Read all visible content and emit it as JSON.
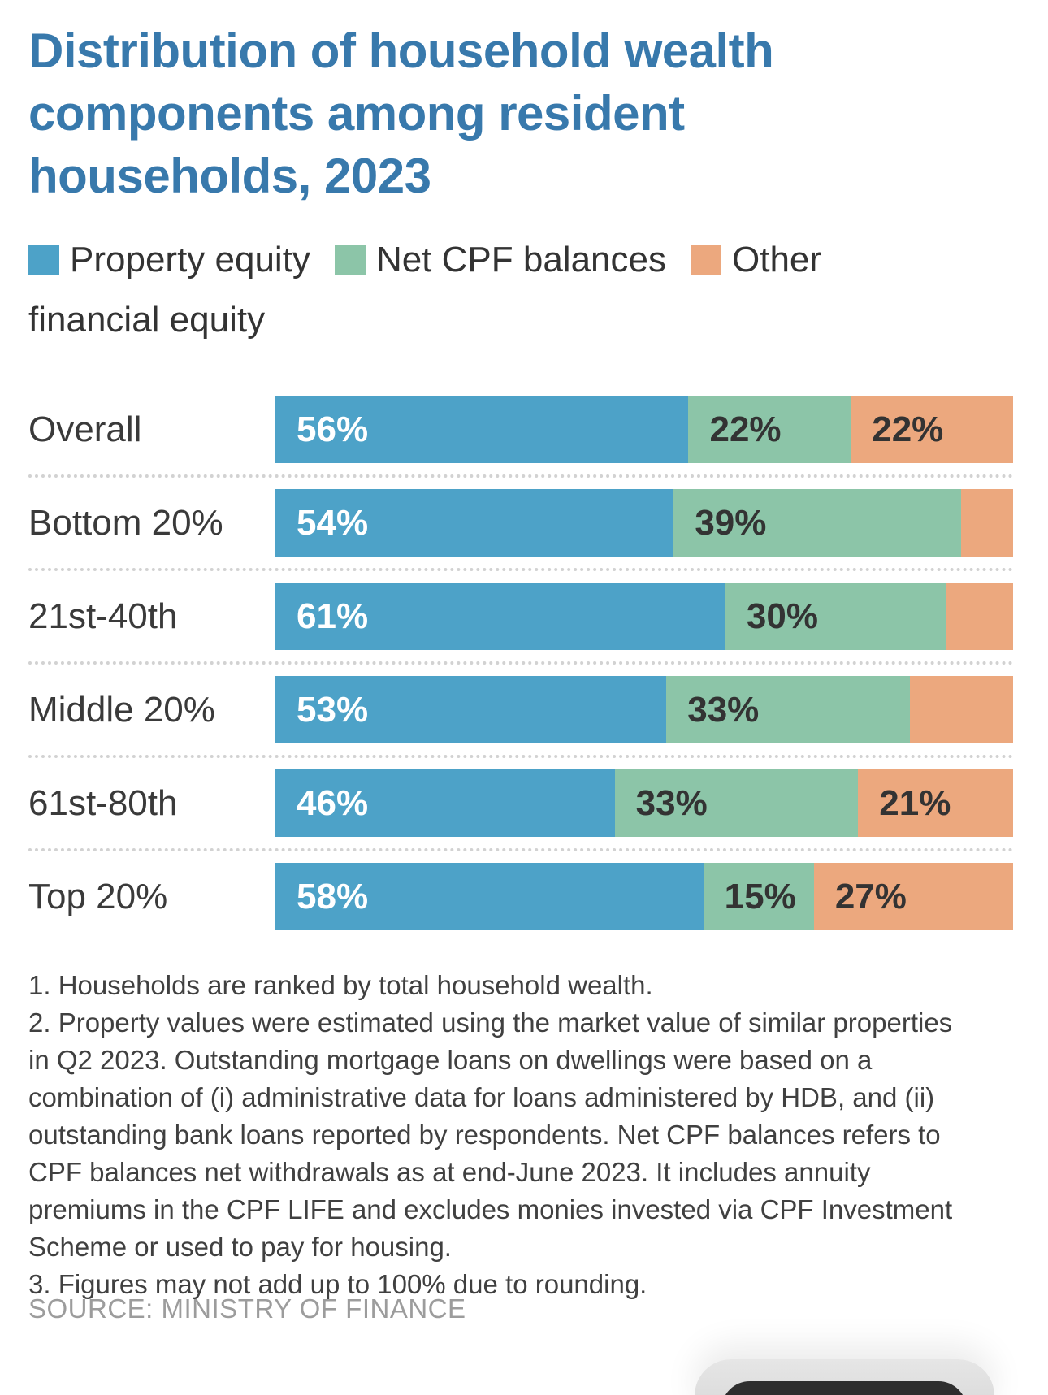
{
  "title": {
    "text": "Distribution of household wealth components among resident households, 2023",
    "lines": [
      "Distribution of household wealth",
      "components among resident",
      "households, 2023"
    ],
    "color": "#3879AC"
  },
  "legend": {
    "items": [
      {
        "label": "Property equity",
        "color": "#4DA2C8"
      },
      {
        "label": "Net CPF balances",
        "color": "#8CC5A8"
      },
      {
        "label": "Other financial equity",
        "color": "#ECA87E"
      }
    ]
  },
  "chart_data": {
    "type": "bar",
    "subtype": "horizontal-stacked",
    "categories": [
      "Overall",
      "Bottom 20%",
      "21st-40th",
      "Middle 20%",
      "61st-80th",
      "Top 20%"
    ],
    "series": [
      {
        "name": "Property equity",
        "color": "#4DA2C8",
        "values": [
          56,
          54,
          61,
          53,
          46,
          58
        ]
      },
      {
        "name": "Net CPF balances",
        "color": "#8CC5A8",
        "values": [
          22,
          39,
          30,
          33,
          33,
          15
        ]
      },
      {
        "name": "Other financial equity",
        "color": "#ECA87E",
        "values": [
          22,
          7,
          9,
          14,
          21,
          27
        ]
      }
    ],
    "segment_labels": [
      [
        "56%",
        "22%",
        "22%"
      ],
      [
        "54%",
        "39%",
        null
      ],
      [
        "61%",
        "30%",
        null
      ],
      [
        "53%",
        "33%",
        null
      ],
      [
        "46%",
        "33%",
        "21%"
      ],
      [
        "58%",
        "15%",
        "27%"
      ]
    ],
    "unlabeled_values_estimated": true,
    "xlim": [
      0,
      100
    ],
    "legend_position": "top",
    "grid": false
  },
  "notes": [
    "1. Households are ranked by total household wealth.",
    "2. Property values were estimated using the market value of similar properties in Q2 2023. Outstanding mortgage loans on dwellings were based on a combination of (i) administrative data for loans administered by HDB, and (ii) outstanding bank loans reported by respondents. Net CPF balances refers to CPF balances net withdrawals as at end-June 2023. It includes annuity premiums in the CPF LIFE and excludes monies invested via CPF Investment Scheme or used to pay for housing.",
    "3. Figures may not add up to 100% due to rounding."
  ],
  "source": "SOURCE: MINISTRY OF FINANCE",
  "colors": {
    "title": "#3879AC",
    "body_text": "#3a3a3a",
    "value_label_on_blue": "#ffffff",
    "value_label_on_light": "#333333",
    "separator": "#d2d2d2",
    "source_text": "#9C9C9C",
    "pill_outer": "#d9d9d9",
    "pill_inner": "#2e2e2e"
  }
}
